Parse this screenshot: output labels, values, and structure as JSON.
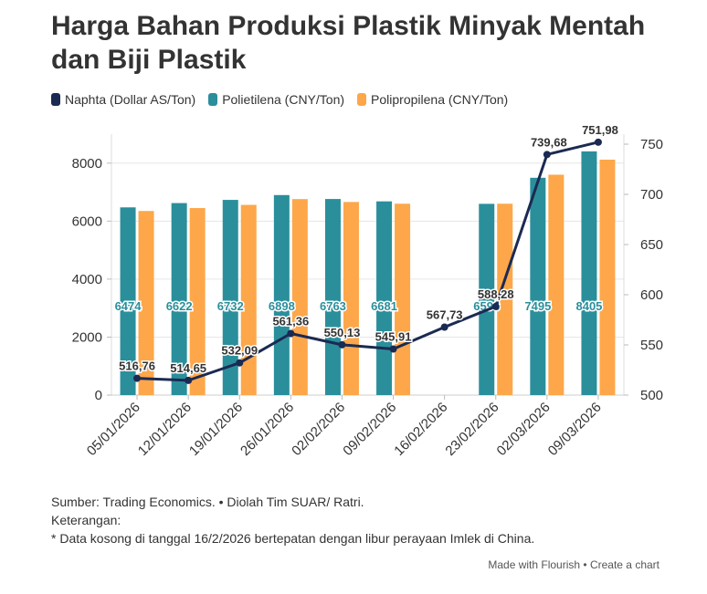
{
  "title": "Harga Bahan Produksi Plastik Minyak Mentah dan Biji Plastik",
  "colors": {
    "naphta": "#1b2a52",
    "polietilena": "#2a8f9b",
    "polipropilena": "#fda74a",
    "grid": "#e6e6e6",
    "text": "#333333"
  },
  "chart_data": {
    "type": "bar",
    "categories": [
      "05/01/2026",
      "12/01/2026",
      "19/01/2026",
      "26/01/2026",
      "02/02/2026",
      "09/02/2026",
      "16/02/2026",
      "23/02/2026",
      "02/03/2026",
      "09/03/2026"
    ],
    "series": [
      {
        "name": "Naphta (Dollar AS/Ton)",
        "type": "line",
        "axis": "right",
        "values": [
          516.76,
          514.65,
          532.09,
          561.36,
          550.13,
          545.91,
          567.73,
          588.28,
          739.68,
          751.98
        ],
        "labels": [
          "516,76",
          "514,65",
          "532,09",
          "561,36",
          "550,13",
          "545,91",
          "567,73",
          "588,28",
          "739,68",
          "751,98"
        ]
      },
      {
        "name": "Polietilena (CNY/Ton)",
        "type": "bar",
        "axis": "left",
        "values": [
          6474,
          6622,
          6732,
          6898,
          6763,
          6681,
          null,
          6596,
          7495,
          8405
        ],
        "labels": [
          "6474",
          "6622",
          "6732",
          "6898",
          "6763",
          "6681",
          "",
          "6596",
          "7495",
          "8405"
        ]
      },
      {
        "name": "Polipropilena (CNY/Ton)",
        "type": "bar",
        "axis": "left",
        "values": [
          6350,
          6450,
          6560,
          6760,
          6660,
          6600,
          null,
          6600,
          7600,
          8120
        ]
      }
    ],
    "y_left": {
      "ylim": [
        0,
        9000
      ],
      "ticks": [
        0,
        2000,
        4000,
        6000,
        8000
      ]
    },
    "y_right": {
      "ylim": [
        500,
        760
      ],
      "ticks": [
        500,
        550,
        600,
        650,
        700,
        750
      ]
    },
    "grid": true,
    "legend": "top-left"
  },
  "notes": {
    "source": "Sumber: Trading Economics. • Diolah Tim SUAR/ Ratri.",
    "label": "Keterangan:",
    "note": "* Data kosong di tanggal 16/2/2026 bertepatan dengan libur perayaan Imlek di China."
  },
  "footer": {
    "made_with": "Made with Flourish",
    "separator": " • ",
    "create": "Create a chart"
  }
}
